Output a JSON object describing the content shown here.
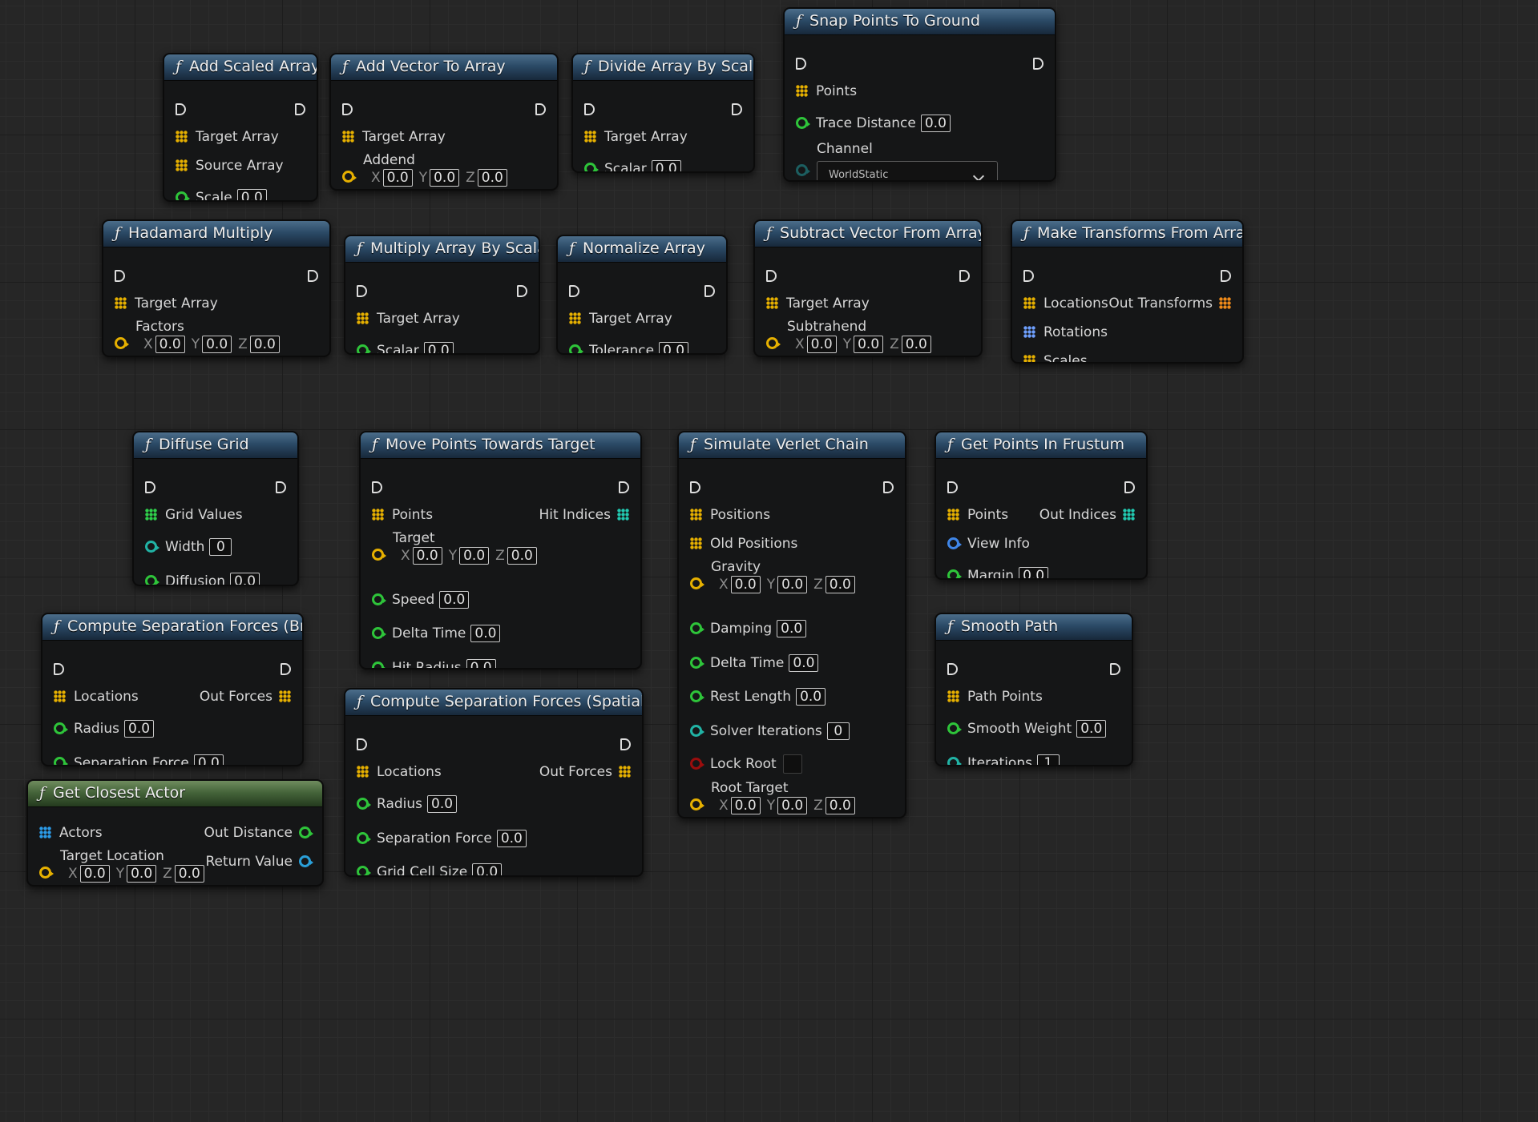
{
  "nodes": [
    {
      "key": "n1",
      "title": "Add Scaled Array",
      "icon": "function-icon",
      "rows": [
        {
          "kind": "exec"
        },
        {
          "kind": "pin",
          "pin": "array",
          "color": "yellow",
          "label": "Target Array"
        },
        {
          "kind": "pin",
          "pin": "array",
          "color": "yellow",
          "label": "Source Array"
        },
        {
          "kind": "pin",
          "pin": "circle",
          "color": "green",
          "label": "Scale",
          "value": "0.0"
        }
      ]
    },
    {
      "key": "n2",
      "title": "Add Vector To Array",
      "icon": "function-icon",
      "rows": [
        {
          "kind": "exec"
        },
        {
          "kind": "pin",
          "pin": "array",
          "color": "yellow",
          "label": "Target Array"
        },
        {
          "kind": "vector",
          "color": "yellow",
          "label": "Addend",
          "x": "0.0",
          "y": "0.0",
          "z": "0.0"
        }
      ]
    },
    {
      "key": "n3",
      "title": "Divide Array By Scalar",
      "icon": "function-icon",
      "rows": [
        {
          "kind": "exec"
        },
        {
          "kind": "pin",
          "pin": "array",
          "color": "yellow",
          "label": "Target Array"
        },
        {
          "kind": "pin",
          "pin": "circle",
          "color": "green",
          "label": "Scalar",
          "value": "0.0"
        }
      ]
    },
    {
      "key": "n4",
      "title": "Snap Points To Ground",
      "icon": "function-icon",
      "rows": [
        {
          "kind": "exec"
        },
        {
          "kind": "pin",
          "pin": "array",
          "color": "yellow",
          "label": "Points"
        },
        {
          "kind": "pin",
          "pin": "circle",
          "color": "green",
          "label": "Trace Distance",
          "value": "0.0"
        },
        {
          "kind": "enum",
          "color": "dimteal",
          "label": "Channel",
          "value": "WorldStatic"
        }
      ]
    },
    {
      "key": "n5",
      "title": "Hadamard Multiply",
      "icon": "function-icon",
      "rows": [
        {
          "kind": "exec"
        },
        {
          "kind": "pin",
          "pin": "array",
          "color": "yellow",
          "label": "Target Array"
        },
        {
          "kind": "vector",
          "color": "yellow",
          "label": "Factors",
          "x": "0.0",
          "y": "0.0",
          "z": "0.0"
        }
      ]
    },
    {
      "key": "n6",
      "title": "Multiply Array By Scalar",
      "icon": "function-icon",
      "rows": [
        {
          "kind": "exec"
        },
        {
          "kind": "pin",
          "pin": "array",
          "color": "yellow",
          "label": "Target Array"
        },
        {
          "kind": "pin",
          "pin": "circle",
          "color": "green",
          "label": "Scalar",
          "value": "0.0"
        }
      ]
    },
    {
      "key": "n7",
      "title": "Normalize Array",
      "icon": "function-icon",
      "rows": [
        {
          "kind": "exec"
        },
        {
          "kind": "pin",
          "pin": "array",
          "color": "yellow",
          "label": "Target Array"
        },
        {
          "kind": "pin",
          "pin": "circle",
          "color": "green",
          "label": "Tolerance",
          "value": "0.0"
        }
      ]
    },
    {
      "key": "n8",
      "title": "Subtract Vector From Array",
      "icon": "function-icon",
      "rows": [
        {
          "kind": "exec"
        },
        {
          "kind": "pin",
          "pin": "array",
          "color": "yellow",
          "label": "Target Array"
        },
        {
          "kind": "vector",
          "color": "yellow",
          "label": "Subtrahend",
          "x": "0.0",
          "y": "0.0",
          "z": "0.0"
        }
      ]
    },
    {
      "key": "n9",
      "title": "Make Transforms From Arrays",
      "icon": "function-icon",
      "rows": [
        {
          "kind": "exec"
        },
        {
          "kind": "pin",
          "pin": "array",
          "color": "yellow",
          "label": "Locations",
          "out": "Out Transforms",
          "outColor": "orange"
        },
        {
          "kind": "pin",
          "pin": "array",
          "color": "blue",
          "label": "Rotations"
        },
        {
          "kind": "pin",
          "pin": "array",
          "color": "yellow",
          "label": "Scales"
        }
      ]
    },
    {
      "key": "n10",
      "title": "Diffuse Grid",
      "icon": "function-icon",
      "rows": [
        {
          "kind": "exec"
        },
        {
          "kind": "pin",
          "pin": "array",
          "color": "green",
          "label": "Grid Values"
        },
        {
          "kind": "pin",
          "pin": "circle",
          "color": "teal",
          "label": "Width",
          "value": "0"
        },
        {
          "kind": "pin",
          "pin": "circle",
          "color": "green",
          "label": "Diffusion",
          "value": "0.0"
        }
      ]
    },
    {
      "key": "n11",
      "title": "Move Points Towards Target",
      "icon": "function-icon",
      "rows": [
        {
          "kind": "exec"
        },
        {
          "kind": "pin",
          "pin": "array",
          "color": "yellow",
          "label": "Points",
          "out": "Hit Indices",
          "outColor": "teal"
        },
        {
          "kind": "vector",
          "color": "yellow",
          "label": "Target",
          "x": "0.0",
          "y": "0.0",
          "z": "0.0"
        },
        {
          "kind": "pin",
          "pin": "circle",
          "color": "green",
          "label": "Speed",
          "value": "0.0"
        },
        {
          "kind": "pin",
          "pin": "circle",
          "color": "green",
          "label": "Delta Time",
          "value": "0.0"
        },
        {
          "kind": "pin",
          "pin": "circle",
          "color": "green",
          "label": "Hit Radius",
          "value": "0.0"
        }
      ]
    },
    {
      "key": "n12",
      "title": "Simulate Verlet Chain",
      "icon": "function-icon",
      "rows": [
        {
          "kind": "exec"
        },
        {
          "kind": "pin",
          "pin": "array",
          "color": "yellow",
          "label": "Positions"
        },
        {
          "kind": "pin",
          "pin": "array",
          "color": "yellow",
          "label": "Old Positions"
        },
        {
          "kind": "vector",
          "color": "yellow",
          "label": "Gravity",
          "x": "0.0",
          "y": "0.0",
          "z": "0.0"
        },
        {
          "kind": "pin",
          "pin": "circle",
          "color": "green",
          "label": "Damping",
          "value": "0.0"
        },
        {
          "kind": "pin",
          "pin": "circle",
          "color": "green",
          "label": "Delta Time",
          "value": "0.0"
        },
        {
          "kind": "pin",
          "pin": "circle",
          "color": "green",
          "label": "Rest Length",
          "value": "0.0"
        },
        {
          "kind": "pin",
          "pin": "circle",
          "color": "teal",
          "label": "Solver Iterations",
          "value": "0"
        },
        {
          "kind": "bool",
          "color": "red",
          "label": "Lock Root"
        },
        {
          "kind": "vector",
          "color": "yellow",
          "label": "Root Target",
          "x": "0.0",
          "y": "0.0",
          "z": "0.0"
        }
      ]
    },
    {
      "key": "n13",
      "title": "Get Points In Frustum",
      "icon": "function-icon",
      "rows": [
        {
          "kind": "exec"
        },
        {
          "kind": "pin",
          "pin": "array",
          "color": "yellow",
          "label": "Points",
          "out": "Out Indices",
          "outColor": "teal"
        },
        {
          "kind": "pin",
          "pin": "circle",
          "color": "blue",
          "label": "View Info"
        },
        {
          "kind": "pin",
          "pin": "circle",
          "color": "green",
          "label": "Margin",
          "value": "0.0"
        }
      ]
    },
    {
      "key": "n14",
      "title": "Compute Separation Forces (Brute)",
      "icon": "function-icon",
      "rows": [
        {
          "kind": "exec"
        },
        {
          "kind": "pin",
          "pin": "array",
          "color": "yellow",
          "label": "Locations",
          "out": "Out Forces",
          "outColor": "yellow"
        },
        {
          "kind": "pin",
          "pin": "circle",
          "color": "green",
          "label": "Radius",
          "value": "0.0"
        },
        {
          "kind": "pin",
          "pin": "circle",
          "color": "green",
          "label": "Separation Force",
          "value": "0.0"
        }
      ]
    },
    {
      "key": "n15",
      "title": "Compute Separation Forces (Spatial Hash)",
      "icon": "function-icon",
      "rows": [
        {
          "kind": "exec"
        },
        {
          "kind": "pin",
          "pin": "array",
          "color": "yellow",
          "label": "Locations",
          "out": "Out Forces",
          "outColor": "yellow"
        },
        {
          "kind": "pin",
          "pin": "circle",
          "color": "green",
          "label": "Radius",
          "value": "0.0"
        },
        {
          "kind": "pin",
          "pin": "circle",
          "color": "green",
          "label": "Separation Force",
          "value": "0.0"
        },
        {
          "kind": "pin",
          "pin": "circle",
          "color": "green",
          "label": "Grid Cell Size",
          "value": "0.0"
        }
      ]
    },
    {
      "key": "n16",
      "title": "Smooth Path",
      "icon": "function-icon",
      "rows": [
        {
          "kind": "exec"
        },
        {
          "kind": "pin",
          "pin": "array",
          "color": "yellow",
          "label": "Path Points"
        },
        {
          "kind": "pin",
          "pin": "circle",
          "color": "green",
          "label": "Smooth Weight",
          "value": "0.0"
        },
        {
          "kind": "pin",
          "pin": "circle",
          "color": "teal",
          "label": "Iterations",
          "value": "1"
        }
      ]
    },
    {
      "key": "n17",
      "title": "Get Closest Actor",
      "icon": "function-icon",
      "headerColor": "green",
      "rows": [
        {
          "kind": "pin",
          "pin": "array",
          "color": "cyan",
          "label": "Actors",
          "out": "Out Distance",
          "outPin": "circle",
          "outColor": "green"
        },
        {
          "kind": "vector",
          "color": "yellow",
          "label": "Target Location",
          "x": "0.0",
          "y": "0.0",
          "z": "0.0",
          "out": "Return Value",
          "outPin": "circle",
          "outColor": "cyan"
        }
      ]
    }
  ],
  "axes": {
    "x": "X",
    "y": "Y",
    "z": "Z"
  },
  "colors": {
    "grid_bg": "#262626",
    "float_pin": "#2ec43a",
    "int_pin": "#21b3a5",
    "vector_pin": "#e6b000",
    "bool_pin": "#9a0d0d",
    "struct_pin": "#3f86e8",
    "object_pin": "#2a9fd8",
    "transform_pin": "#ef8a19",
    "function_header": "#2b4a66",
    "pure_function_header": "#45643a"
  }
}
